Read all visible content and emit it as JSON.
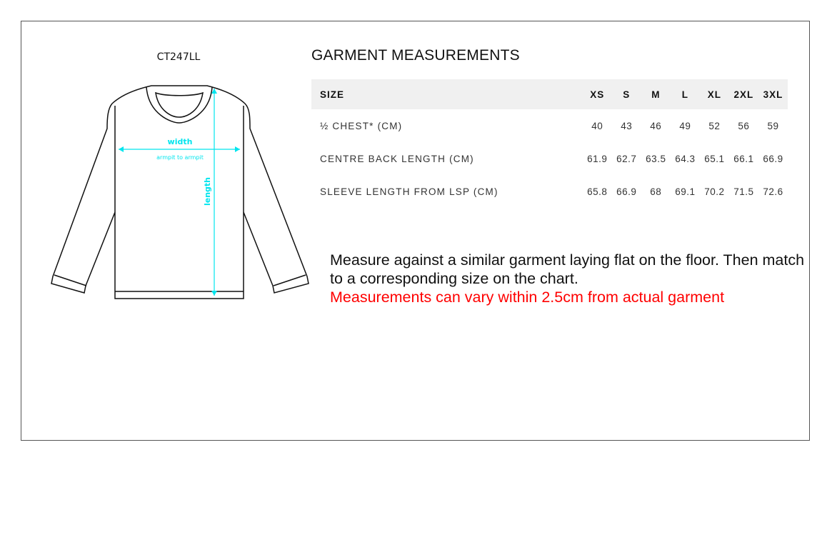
{
  "product_code": "CT247LL",
  "diagram": {
    "width_label": "width",
    "width_sublabel": "armpit to armpit",
    "length_label": "length",
    "measure_color": "#00e5ee"
  },
  "title": "GARMENT MEASUREMENTS",
  "table": {
    "headers": [
      "SIZE",
      "XS",
      "S",
      "M",
      "L",
      "XL",
      "2XL",
      "3XL"
    ],
    "rows": [
      [
        "½ CHEST* (CM)",
        "40",
        "43",
        "46",
        "49",
        "52",
        "56",
        "59"
      ],
      [
        "CENTRE BACK LENGTH (CM)",
        "61.9",
        "62.7",
        "63.5",
        "64.3",
        "65.1",
        "66.1",
        "66.9"
      ],
      [
        "SLEEVE LENGTH FROM LSP (CM)",
        "65.8",
        "66.9",
        "68",
        "69.1",
        "70.2",
        "71.5",
        "72.6"
      ]
    ]
  },
  "note": {
    "line1": "Measure against a similar garment laying flat on the floor. Then match to a corresponding size on the chart.",
    "warning": "Measurements can vary within 2.5cm from actual garment",
    "warning_color": "#ff0000"
  }
}
